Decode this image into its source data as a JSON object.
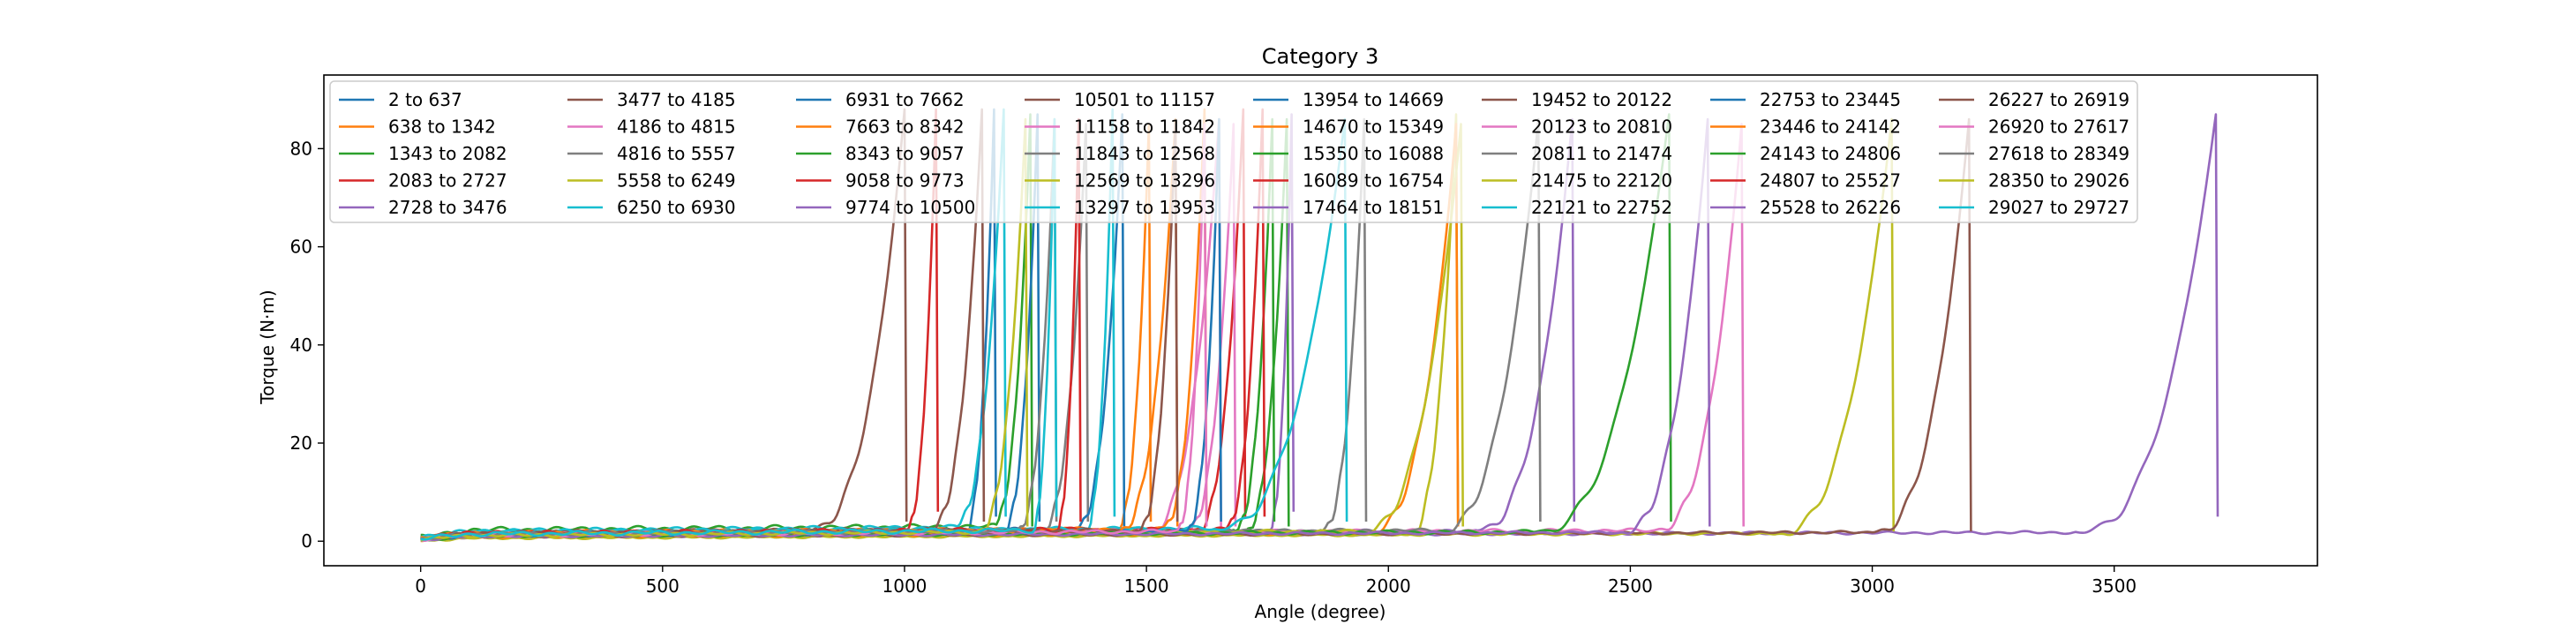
{
  "chart_data": {
    "type": "line",
    "title": "Category 3",
    "xlabel": "Angle (degree)",
    "ylabel": "Torque (N·m)",
    "xlim": [
      -200,
      3920
    ],
    "ylim": [
      -5,
      95
    ],
    "x_ticks": [
      "0",
      "500",
      "1000",
      "1500",
      "2000",
      "2500",
      "3000",
      "3500"
    ],
    "y_ticks": [
      "0",
      "20",
      "40",
      "60",
      "80"
    ],
    "grid": false,
    "legend_position": "top-left",
    "legend_columns": 8,
    "series": [
      {
        "name": "2 to 637",
        "color": "#1f77b4",
        "rise_start": 1120,
        "rise_end": 1185,
        "peak": 88,
        "base": 1.2,
        "drop": 5,
        "wave": 0.5
      },
      {
        "name": "638 to 1342",
        "color": "#ff7f0e",
        "rise_start": 1435,
        "rise_end": 1505,
        "peak": 85,
        "base": 1.6,
        "drop": 4,
        "wave": 0.4
      },
      {
        "name": "1343 to 2082",
        "color": "#2ca02c",
        "rise_start": 1180,
        "rise_end": 1260,
        "peak": 87,
        "base": 2.2,
        "drop": 3,
        "wave": 0.6
      },
      {
        "name": "2083 to 2727",
        "color": "#d62728",
        "rise_start": 1000,
        "rise_end": 1065,
        "peak": 88,
        "base": 1.5,
        "drop": 6,
        "wave": 0.5
      },
      {
        "name": "2728 to 3476",
        "color": "#9467bd",
        "rise_start": 3420,
        "rise_end": 3710,
        "peak": 87,
        "base": 1.0,
        "drop": 5,
        "wave": 0.3
      },
      {
        "name": "3477 to 4185",
        "color": "#8c564b",
        "rise_start": 800,
        "rise_end": 1000,
        "peak": 88,
        "base": 1.5,
        "drop": 4,
        "wave": 0.4
      },
      {
        "name": "4186 to 4815",
        "color": "#e377c2",
        "rise_start": 1500,
        "rise_end": 1650,
        "peak": 86,
        "base": 1.3,
        "drop": 3,
        "wave": 0.5
      },
      {
        "name": "4816 to 5557",
        "color": "#7f7f7f",
        "rise_start": 1280,
        "rise_end": 1375,
        "peak": 85,
        "base": 1.2,
        "drop": 4,
        "wave": 0.4
      },
      {
        "name": "5558 to 6249",
        "color": "#bcbd22",
        "rise_start": 2800,
        "rise_end": 3040,
        "peak": 86,
        "base": 0.8,
        "drop": 2,
        "wave": 0.3
      },
      {
        "name": "6250 to 6930",
        "color": "#17becf",
        "rise_start": 1100,
        "rise_end": 1205,
        "peak": 88,
        "base": 2.0,
        "drop": 5,
        "wave": 0.5
      },
      {
        "name": "6931 to 7662",
        "color": "#1f77b4",
        "rise_start": 1350,
        "rise_end": 1450,
        "peak": 87,
        "base": 1.5,
        "drop": 3,
        "wave": 0.5
      },
      {
        "name": "7663 to 8342",
        "color": "#ff7f0e",
        "rise_start": 1530,
        "rise_end": 1620,
        "peak": 88,
        "base": 1.7,
        "drop": 4,
        "wave": 0.4
      },
      {
        "name": "8343 to 9057",
        "color": "#2ca02c",
        "rise_start": 1700,
        "rise_end": 1790,
        "peak": 86,
        "base": 1.4,
        "drop": 3,
        "wave": 0.5
      },
      {
        "name": "9058 to 9773",
        "color": "#d62728",
        "rise_start": 1600,
        "rise_end": 1700,
        "peak": 88,
        "base": 1.6,
        "drop": 5,
        "wave": 0.5
      },
      {
        "name": "9774 to 10500",
        "color": "#9467bd",
        "rise_start": 1750,
        "rise_end": 1800,
        "peak": 87,
        "base": 0.9,
        "drop": 6,
        "wave": 0.3
      },
      {
        "name": "10501 to 11157",
        "color": "#8c564b",
        "rise_start": 1050,
        "rise_end": 1160,
        "peak": 88,
        "base": 1.6,
        "drop": 4,
        "wave": 0.4
      },
      {
        "name": "11158 to 11842",
        "color": "#e377c2",
        "rise_start": 1580,
        "rise_end": 1680,
        "peak": 85,
        "base": 1.1,
        "drop": 3,
        "wave": 0.4
      },
      {
        "name": "11843 to 12568",
        "color": "#7f7f7f",
        "rise_start": 1860,
        "rise_end": 1950,
        "peak": 86,
        "base": 1.3,
        "drop": 4,
        "wave": 0.4
      },
      {
        "name": "12569 to 13296",
        "color": "#bcbd22",
        "rise_start": 2040,
        "rise_end": 2140,
        "peak": 87,
        "base": 0.6,
        "drop": 3,
        "wave": 0.3
      },
      {
        "name": "13297 to 13953",
        "color": "#17becf",
        "rise_start": 1370,
        "rise_end": 1430,
        "peak": 88,
        "base": 1.4,
        "drop": 5,
        "wave": 0.5
      },
      {
        "name": "13954 to 14669",
        "color": "#1f77b4",
        "rise_start": 1200,
        "rise_end": 1275,
        "peak": 87,
        "base": 1.2,
        "drop": 4,
        "wave": 0.4
      },
      {
        "name": "14670 to 15349",
        "color": "#ff7f0e",
        "rise_start": 1960,
        "rise_end": 2140,
        "peak": 85,
        "base": 1.0,
        "drop": 3,
        "wave": 0.4
      },
      {
        "name": "15350 to 16088",
        "color": "#2ca02c",
        "rise_start": 1680,
        "rise_end": 1760,
        "peak": 86,
        "base": 1.2,
        "drop": 4,
        "wave": 0.4
      },
      {
        "name": "16089 to 16754",
        "color": "#d62728",
        "rise_start": 1660,
        "rise_end": 1740,
        "peak": 88,
        "base": 1.5,
        "drop": 5,
        "wave": 0.5
      },
      {
        "name": "17464 to 18151",
        "color": "#9467bd",
        "rise_start": 2180,
        "rise_end": 2380,
        "peak": 86,
        "base": 1.3,
        "drop": 4,
        "wave": 0.4
      },
      {
        "name": "19452 to 20122",
        "color": "#8c564b",
        "rise_start": 3000,
        "rise_end": 3200,
        "peak": 86,
        "base": 1.0,
        "drop": 2,
        "wave": 0.3
      },
      {
        "name": "20123 to 20810",
        "color": "#e377c2",
        "rise_start": 2550,
        "rise_end": 2730,
        "peak": 85,
        "base": 1.4,
        "drop": 3,
        "wave": 0.4
      },
      {
        "name": "20811 to 21474",
        "color": "#7f7f7f",
        "rise_start": 2100,
        "rise_end": 2310,
        "peak": 86,
        "base": 1.4,
        "drop": 4,
        "wave": 0.4
      },
      {
        "name": "21475 to 22120",
        "color": "#bcbd22",
        "rise_start": 1940,
        "rise_end": 2150,
        "peak": 85,
        "base": 1.2,
        "drop": 3,
        "wave": 0.4
      },
      {
        "name": "22121 to 22752",
        "color": "#17becf",
        "rise_start": 1640,
        "rise_end": 1910,
        "peak": 86,
        "base": 1.8,
        "drop": 4,
        "wave": 0.5
      },
      {
        "name": "22753 to 23445",
        "color": "#1f77b4",
        "rise_start": 1580,
        "rise_end": 1650,
        "peak": 86,
        "base": 1.2,
        "drop": 4,
        "wave": 0.4
      },
      {
        "name": "23446 to 24142",
        "color": "#ff7f0e",
        "rise_start": 1440,
        "rise_end": 1560,
        "peak": 86,
        "base": 1.4,
        "drop": 3,
        "wave": 0.4
      },
      {
        "name": "24143 to 24806",
        "color": "#2ca02c",
        "rise_start": 2300,
        "rise_end": 2580,
        "peak": 87,
        "base": 1.1,
        "drop": 4,
        "wave": 0.4
      },
      {
        "name": "24807 to 25527",
        "color": "#d62728",
        "rise_start": 1310,
        "rise_end": 1360,
        "peak": 86,
        "base": 1.5,
        "drop": 4,
        "wave": 0.5
      },
      {
        "name": "25528 to 26226",
        "color": "#9467bd",
        "rise_start": 2480,
        "rise_end": 2660,
        "peak": 86,
        "base": 1.0,
        "drop": 3,
        "wave": 0.3
      },
      {
        "name": "26227 to 26919",
        "color": "#8c564b",
        "rise_start": 1480,
        "rise_end": 1560,
        "peak": 85,
        "base": 1.4,
        "drop": 4,
        "wave": 0.4
      },
      {
        "name": "26920 to 27617",
        "color": "#e377c2",
        "rise_start": 1560,
        "rise_end": 1620,
        "peak": 85,
        "base": 1.2,
        "drop": 3,
        "wave": 0.4
      },
      {
        "name": "27618 to 28349",
        "color": "#7f7f7f",
        "rise_start": 1230,
        "rise_end": 1310,
        "peak": 86,
        "base": 1.3,
        "drop": 4,
        "wave": 0.4
      },
      {
        "name": "28350 to 29026",
        "color": "#bcbd22",
        "rise_start": 1150,
        "rise_end": 1250,
        "peak": 86,
        "base": 1.1,
        "drop": 3,
        "wave": 0.4
      },
      {
        "name": "29027 to 29727",
        "color": "#17becf",
        "rise_start": 1260,
        "rise_end": 1310,
        "peak": 86,
        "base": 1.4,
        "drop": 5,
        "wave": 0.5
      }
    ]
  }
}
